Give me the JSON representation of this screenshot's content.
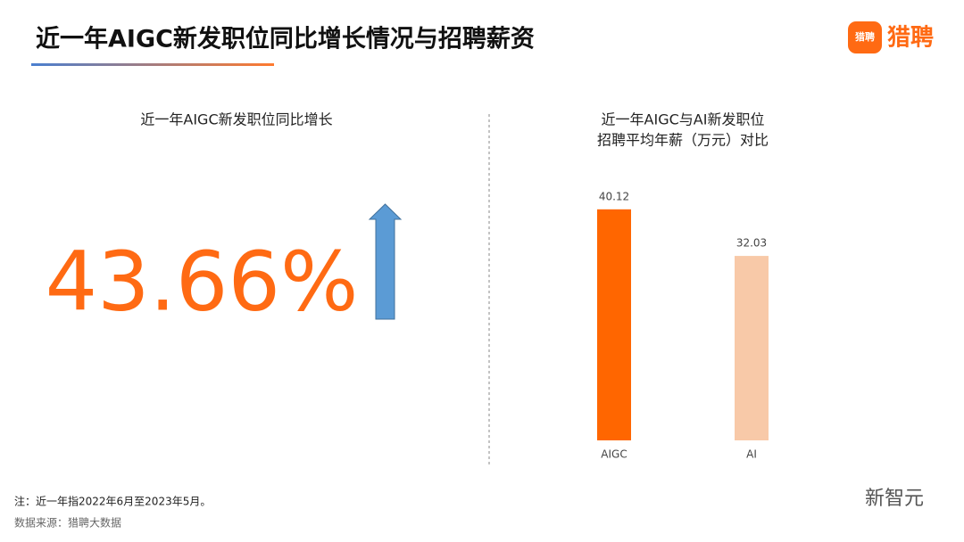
{
  "header": {
    "title": "近一年AIGC新发职位同比增长情况与招聘薪资",
    "logo_icon_text": "猎聘",
    "logo_text": "猎聘"
  },
  "left_panel": {
    "title": "近一年AIGC新发职位同比增长",
    "stat": "43.66%"
  },
  "chart_data": {
    "type": "bar",
    "title": [
      "近一年AIGC与AI新发职位",
      "招聘平均年薪（万元）对比"
    ],
    "categories": [
      "AIGC",
      "AI"
    ],
    "values": [
      40.12,
      32.03
    ],
    "colors": [
      "#ff6600",
      "#f8c9a8"
    ]
  },
  "notes": [
    "注：近一年指2022年6月至2023年5月。",
    "数据来源：猎聘大数据"
  ],
  "watermark": "新智元"
}
